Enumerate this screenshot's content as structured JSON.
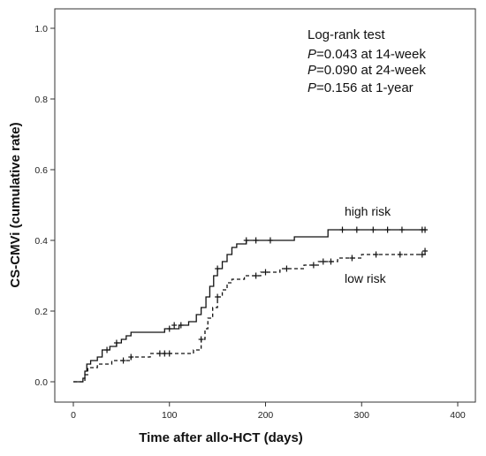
{
  "chart_data": {
    "type": "line",
    "title": "",
    "xlabel": "Time after allo-HCT (days)",
    "ylabel": "CS-CMVi (cumulative rate)",
    "xlim": [
      0,
      400
    ],
    "ylim": [
      0,
      1.0
    ],
    "x_ticks": [
      0,
      100,
      200,
      300,
      400
    ],
    "y_ticks": [
      0.0,
      0.2,
      0.4,
      0.6,
      0.8,
      1.0
    ],
    "x_tick_labels": [
      "0",
      "100",
      "200",
      "300",
      "400"
    ],
    "y_tick_labels": [
      "0.0",
      "0.2",
      "0.4",
      "0.6",
      "0.8",
      "1.0"
    ],
    "grid": false,
    "annotation": {
      "line1": "Log-rank test",
      "line2_italic": "P",
      "line2_rest": "=0.043 at 14-week",
      "line3_italic": "P",
      "line3_rest": "=0.090 at 24-week",
      "line4_italic": "P",
      "line4_rest": "=0.156 at 1-year"
    },
    "series": [
      {
        "name": "high risk",
        "style": "solid",
        "color": "#111111",
        "steps": [
          [
            0,
            0
          ],
          [
            8,
            0
          ],
          [
            10,
            0.01
          ],
          [
            12,
            0.03
          ],
          [
            14,
            0.05
          ],
          [
            18,
            0.06
          ],
          [
            25,
            0.07
          ],
          [
            30,
            0.09
          ],
          [
            38,
            0.1
          ],
          [
            45,
            0.11
          ],
          [
            50,
            0.12
          ],
          [
            55,
            0.13
          ],
          [
            60,
            0.14
          ],
          [
            70,
            0.14
          ],
          [
            95,
            0.15
          ],
          [
            110,
            0.16
          ],
          [
            120,
            0.17
          ],
          [
            128,
            0.19
          ],
          [
            133,
            0.21
          ],
          [
            138,
            0.24
          ],
          [
            142,
            0.27
          ],
          [
            146,
            0.3
          ],
          [
            150,
            0.32
          ],
          [
            155,
            0.34
          ],
          [
            160,
            0.36
          ],
          [
            165,
            0.38
          ],
          [
            170,
            0.39
          ],
          [
            180,
            0.4
          ],
          [
            230,
            0.41
          ],
          [
            265,
            0.43
          ],
          [
            367,
            0.43
          ]
        ],
        "censored": [
          [
            35,
            0.09
          ],
          [
            45,
            0.11
          ],
          [
            100,
            0.15
          ],
          [
            105,
            0.16
          ],
          [
            112,
            0.16
          ],
          [
            150,
            0.32
          ],
          [
            180,
            0.4
          ],
          [
            190,
            0.4
          ],
          [
            205,
            0.4
          ],
          [
            280,
            0.43
          ],
          [
            295,
            0.43
          ],
          [
            312,
            0.43
          ],
          [
            327,
            0.43
          ],
          [
            342,
            0.43
          ],
          [
            363,
            0.43
          ],
          [
            366,
            0.43
          ]
        ]
      },
      {
        "name": "low risk",
        "style": "dashed",
        "color": "#111111",
        "steps": [
          [
            0,
            0
          ],
          [
            10,
            0
          ],
          [
            12,
            0.02
          ],
          [
            15,
            0.04
          ],
          [
            25,
            0.05
          ],
          [
            40,
            0.06
          ],
          [
            60,
            0.07
          ],
          [
            80,
            0.08
          ],
          [
            125,
            0.09
          ],
          [
            133,
            0.12
          ],
          [
            137,
            0.15
          ],
          [
            140,
            0.18
          ],
          [
            145,
            0.21
          ],
          [
            150,
            0.24
          ],
          [
            155,
            0.26
          ],
          [
            160,
            0.28
          ],
          [
            165,
            0.29
          ],
          [
            178,
            0.3
          ],
          [
            195,
            0.31
          ],
          [
            215,
            0.32
          ],
          [
            240,
            0.33
          ],
          [
            255,
            0.34
          ],
          [
            275,
            0.35
          ],
          [
            300,
            0.36
          ],
          [
            367,
            0.36
          ]
        ],
        "censored": [
          [
            52,
            0.06
          ],
          [
            60,
            0.07
          ],
          [
            90,
            0.08
          ],
          [
            95,
            0.08
          ],
          [
            100,
            0.08
          ],
          [
            133,
            0.12
          ],
          [
            150,
            0.24
          ],
          [
            190,
            0.3
          ],
          [
            200,
            0.31
          ],
          [
            222,
            0.32
          ],
          [
            250,
            0.33
          ],
          [
            260,
            0.34
          ],
          [
            268,
            0.34
          ],
          [
            290,
            0.35
          ],
          [
            315,
            0.36
          ],
          [
            340,
            0.36
          ],
          [
            363,
            0.36
          ],
          [
            366,
            0.37
          ]
        ]
      }
    ]
  }
}
